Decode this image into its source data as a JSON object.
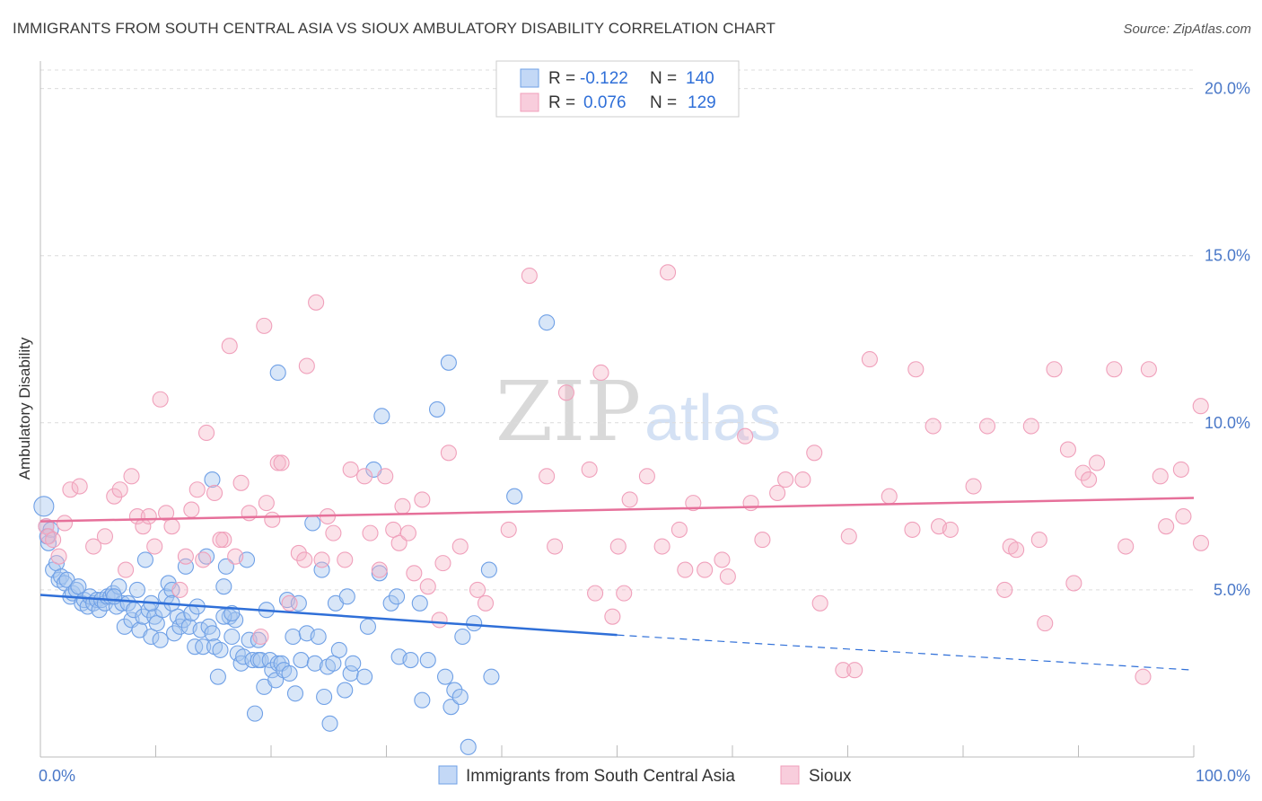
{
  "title": "IMMIGRANTS FROM SOUTH CENTRAL ASIA VS SIOUX AMBULATORY DISABILITY CORRELATION CHART",
  "source": "Source: ZipAtlas.com",
  "watermark": {
    "zip": "ZIP",
    "atlas": "atlas"
  },
  "legend": {
    "rows": [
      {
        "r_label": "R =",
        "r_value": "-0.122",
        "n_label": "N =",
        "n_value": "140",
        "color": "#a9c7f0"
      },
      {
        "r_label": "R =",
        "r_value": "0.076",
        "n_label": "N =",
        "n_value": "129",
        "color": "#f4b6c9"
      }
    ]
  },
  "bottom_legend": [
    "Immigrants from South Central Asia",
    "Sioux"
  ],
  "chart_data": {
    "type": "scatter",
    "title": "IMMIGRANTS FROM SOUTH CENTRAL ASIA VS SIOUX AMBULATORY DISABILITY CORRELATION CHART",
    "xlabel": "",
    "ylabel": "Ambulatory Disability",
    "xlim": [
      0,
      100
    ],
    "ylim": [
      0,
      20.5
    ],
    "x_tick_labels": [
      "0.0%",
      "100.0%"
    ],
    "y_ticks": [
      5,
      10,
      15,
      20
    ],
    "y_tick_labels": [
      "5.0%",
      "10.0%",
      "15.0%",
      "20.0%"
    ],
    "grid": true,
    "legend_position": "top-center",
    "series": [
      {
        "name": "Immigrants from South Central Asia",
        "color": "#6fa0e6",
        "line_color": "#2f6fd8",
        "trend": {
          "x0": 0,
          "y0": 4.85,
          "x1": 50,
          "y1": 3.65,
          "x_end": 100,
          "y_end": 2.6
        },
        "points": [
          [
            0.3,
            7.5
          ],
          [
            0.5,
            6.9
          ],
          [
            0.7,
            6.4
          ],
          [
            0.9,
            6.8
          ],
          [
            1.1,
            5.6
          ],
          [
            1.4,
            5.8
          ],
          [
            1.6,
            5.3
          ],
          [
            1.8,
            5.4
          ],
          [
            2.1,
            5.2
          ],
          [
            2.3,
            5.3
          ],
          [
            2.6,
            4.8
          ],
          [
            2.8,
            4.9
          ],
          [
            3.1,
            5.0
          ],
          [
            3.3,
            5.1
          ],
          [
            3.6,
            4.6
          ],
          [
            3.8,
            4.7
          ],
          [
            4.1,
            4.5
          ],
          [
            4.3,
            4.8
          ],
          [
            4.6,
            4.6
          ],
          [
            4.9,
            4.7
          ],
          [
            5.1,
            4.4
          ],
          [
            5.3,
            4.7
          ],
          [
            5.6,
            4.6
          ],
          [
            5.8,
            4.8
          ],
          [
            6.1,
            4.8
          ],
          [
            6.3,
            4.9
          ],
          [
            6.6,
            4.5
          ],
          [
            6.8,
            5.1
          ],
          [
            7.1,
            4.6
          ],
          [
            7.3,
            3.9
          ],
          [
            7.6,
            4.6
          ],
          [
            7.9,
            4.1
          ],
          [
            8.1,
            4.4
          ],
          [
            8.4,
            5.0
          ],
          [
            8.6,
            3.8
          ],
          [
            8.9,
            4.2
          ],
          [
            9.1,
            5.9
          ],
          [
            9.4,
            4.4
          ],
          [
            9.6,
            3.6
          ],
          [
            9.9,
            4.2
          ],
          [
            10.1,
            4.0
          ],
          [
            10.4,
            3.5
          ],
          [
            10.6,
            4.4
          ],
          [
            10.9,
            4.8
          ],
          [
            11.1,
            5.2
          ],
          [
            11.4,
            5.0
          ],
          [
            11.6,
            3.7
          ],
          [
            11.9,
            4.2
          ],
          [
            12.1,
            3.9
          ],
          [
            12.4,
            4.1
          ],
          [
            12.6,
            5.7
          ],
          [
            12.9,
            3.9
          ],
          [
            13.1,
            4.3
          ],
          [
            13.4,
            3.3
          ],
          [
            13.6,
            4.5
          ],
          [
            13.9,
            3.8
          ],
          [
            14.1,
            3.3
          ],
          [
            14.4,
            6.0
          ],
          [
            14.6,
            3.9
          ],
          [
            14.9,
            3.7
          ],
          [
            15.1,
            3.3
          ],
          [
            15.4,
            2.4
          ],
          [
            15.6,
            3.2
          ],
          [
            15.9,
            5.1
          ],
          [
            16.1,
            5.7
          ],
          [
            16.4,
            4.2
          ],
          [
            16.6,
            3.6
          ],
          [
            16.9,
            4.1
          ],
          [
            17.1,
            3.1
          ],
          [
            17.4,
            2.8
          ],
          [
            17.6,
            3.0
          ],
          [
            17.9,
            5.9
          ],
          [
            18.1,
            3.5
          ],
          [
            18.4,
            2.9
          ],
          [
            18.6,
            1.3
          ],
          [
            18.9,
            2.9
          ],
          [
            19.1,
            2.9
          ],
          [
            19.4,
            2.1
          ],
          [
            19.6,
            4.4
          ],
          [
            19.9,
            2.9
          ],
          [
            20.1,
            2.6
          ],
          [
            20.4,
            2.3
          ],
          [
            20.6,
            2.8
          ],
          [
            20.9,
            2.8
          ],
          [
            21.1,
            2.6
          ],
          [
            21.4,
            4.7
          ],
          [
            21.6,
            2.5
          ],
          [
            21.9,
            3.6
          ],
          [
            22.1,
            1.9
          ],
          [
            22.4,
            4.6
          ],
          [
            22.6,
            2.9
          ],
          [
            23.1,
            3.7
          ],
          [
            23.6,
            7.0
          ],
          [
            23.8,
            2.8
          ],
          [
            24.1,
            3.6
          ],
          [
            24.4,
            5.6
          ],
          [
            24.6,
            1.8
          ],
          [
            24.9,
            2.7
          ],
          [
            25.1,
            1.0
          ],
          [
            25.4,
            2.8
          ],
          [
            25.6,
            4.6
          ],
          [
            25.9,
            3.2
          ],
          [
            26.4,
            2.0
          ],
          [
            26.6,
            4.8
          ],
          [
            26.9,
            2.5
          ],
          [
            27.1,
            2.8
          ],
          [
            28.1,
            2.4
          ],
          [
            28.4,
            3.9
          ],
          [
            28.9,
            8.6
          ],
          [
            29.4,
            5.5
          ],
          [
            29.6,
            10.2
          ],
          [
            30.4,
            4.6
          ],
          [
            30.9,
            4.8
          ],
          [
            31.1,
            3.0
          ],
          [
            32.1,
            2.9
          ],
          [
            32.9,
            4.6
          ],
          [
            33.1,
            1.7
          ],
          [
            33.6,
            2.9
          ],
          [
            35.1,
            2.4
          ],
          [
            35.6,
            1.5
          ],
          [
            35.9,
            2.0
          ],
          [
            36.4,
            1.8
          ],
          [
            36.6,
            3.6
          ],
          [
            37.1,
            0.3
          ],
          [
            37.6,
            4.0
          ],
          [
            38.9,
            5.6
          ],
          [
            39.1,
            2.4
          ],
          [
            41.1,
            7.8
          ],
          [
            43.9,
            13.0
          ],
          [
            35.4,
            11.8
          ],
          [
            34.4,
            10.4
          ],
          [
            20.6,
            11.5
          ],
          [
            14.9,
            8.3
          ],
          [
            15.9,
            4.2
          ],
          [
            16.6,
            4.3
          ],
          [
            6.4,
            4.8
          ],
          [
            9.6,
            4.6
          ],
          [
            11.4,
            4.6
          ],
          [
            18.9,
            3.5
          ],
          [
            0.6,
            6.6
          ]
        ]
      },
      {
        "name": "Sioux",
        "color": "#f0a0bb",
        "line_color": "#e6709a",
        "trend": {
          "x0": 0,
          "y0": 7.05,
          "x1": 100,
          "y1": 7.75
        },
        "points": [
          [
            0.5,
            6.9
          ],
          [
            0.7,
            6.6
          ],
          [
            1.1,
            6.5
          ],
          [
            1.6,
            6.0
          ],
          [
            2.1,
            7.0
          ],
          [
            2.6,
            8.0
          ],
          [
            3.4,
            8.1
          ],
          [
            4.6,
            6.3
          ],
          [
            5.6,
            6.6
          ],
          [
            6.4,
            7.8
          ],
          [
            6.9,
            8.0
          ],
          [
            7.4,
            5.6
          ],
          [
            7.9,
            8.4
          ],
          [
            8.4,
            7.2
          ],
          [
            8.9,
            6.9
          ],
          [
            9.4,
            7.2
          ],
          [
            9.9,
            6.3
          ],
          [
            10.4,
            10.7
          ],
          [
            10.9,
            7.3
          ],
          [
            11.4,
            6.9
          ],
          [
            12.1,
            5.0
          ],
          [
            12.6,
            6.0
          ],
          [
            13.1,
            7.4
          ],
          [
            13.6,
            8.0
          ],
          [
            14.1,
            5.9
          ],
          [
            14.4,
            9.7
          ],
          [
            15.1,
            7.9
          ],
          [
            15.9,
            6.5
          ],
          [
            16.4,
            12.3
          ],
          [
            16.9,
            6.0
          ],
          [
            17.4,
            8.2
          ],
          [
            18.1,
            7.3
          ],
          [
            19.1,
            3.6
          ],
          [
            19.4,
            12.9
          ],
          [
            19.6,
            7.6
          ],
          [
            20.1,
            7.1
          ],
          [
            20.6,
            8.8
          ],
          [
            20.9,
            8.8
          ],
          [
            21.6,
            4.6
          ],
          [
            22.4,
            6.1
          ],
          [
            22.9,
            5.9
          ],
          [
            23.1,
            11.7
          ],
          [
            23.9,
            13.6
          ],
          [
            24.4,
            5.9
          ],
          [
            24.9,
            7.2
          ],
          [
            25.4,
            6.7
          ],
          [
            26.4,
            5.9
          ],
          [
            26.9,
            8.6
          ],
          [
            28.1,
            8.4
          ],
          [
            28.6,
            6.7
          ],
          [
            29.4,
            5.6
          ],
          [
            29.9,
            8.4
          ],
          [
            30.6,
            6.8
          ],
          [
            31.1,
            6.4
          ],
          [
            31.4,
            7.5
          ],
          [
            31.9,
            6.7
          ],
          [
            32.4,
            5.5
          ],
          [
            33.1,
            7.7
          ],
          [
            33.6,
            5.1
          ],
          [
            34.6,
            4.1
          ],
          [
            34.9,
            5.8
          ],
          [
            35.4,
            9.1
          ],
          [
            36.4,
            6.3
          ],
          [
            37.9,
            5.0
          ],
          [
            38.6,
            4.6
          ],
          [
            40.6,
            6.8
          ],
          [
            42.4,
            14.4
          ],
          [
            43.9,
            8.4
          ],
          [
            44.6,
            6.3
          ],
          [
            45.6,
            10.9
          ],
          [
            47.6,
            8.6
          ],
          [
            48.1,
            4.9
          ],
          [
            48.6,
            11.5
          ],
          [
            49.6,
            4.2
          ],
          [
            50.1,
            6.3
          ],
          [
            50.6,
            4.9
          ],
          [
            51.1,
            7.7
          ],
          [
            52.6,
            8.4
          ],
          [
            53.9,
            6.3
          ],
          [
            54.4,
            14.5
          ],
          [
            55.4,
            6.8
          ],
          [
            55.9,
            5.6
          ],
          [
            56.6,
            7.6
          ],
          [
            57.6,
            5.6
          ],
          [
            59.1,
            5.9
          ],
          [
            59.6,
            5.4
          ],
          [
            61.1,
            9.6
          ],
          [
            61.6,
            7.6
          ],
          [
            62.6,
            6.5
          ],
          [
            63.9,
            7.9
          ],
          [
            64.6,
            8.3
          ],
          [
            66.1,
            8.3
          ],
          [
            67.1,
            9.1
          ],
          [
            67.6,
            4.6
          ],
          [
            69.6,
            2.6
          ],
          [
            70.1,
            6.6
          ],
          [
            70.6,
            2.6
          ],
          [
            71.9,
            11.9
          ],
          [
            73.6,
            7.8
          ],
          [
            75.6,
            6.8
          ],
          [
            75.9,
            11.6
          ],
          [
            77.4,
            9.9
          ],
          [
            77.9,
            6.9
          ],
          [
            78.9,
            6.8
          ],
          [
            80.9,
            8.1
          ],
          [
            82.1,
            9.9
          ],
          [
            83.6,
            5.0
          ],
          [
            84.1,
            6.3
          ],
          [
            84.6,
            6.2
          ],
          [
            85.9,
            9.9
          ],
          [
            86.6,
            6.5
          ],
          [
            87.1,
            4.0
          ],
          [
            87.9,
            11.6
          ],
          [
            89.1,
            9.2
          ],
          [
            89.6,
            5.2
          ],
          [
            90.4,
            8.5
          ],
          [
            90.9,
            8.3
          ],
          [
            91.6,
            8.8
          ],
          [
            93.1,
            11.6
          ],
          [
            94.1,
            6.3
          ],
          [
            95.6,
            2.4
          ],
          [
            96.1,
            11.6
          ],
          [
            97.1,
            8.4
          ],
          [
            97.6,
            6.9
          ],
          [
            98.9,
            8.6
          ],
          [
            99.1,
            7.2
          ],
          [
            100.6,
            10.5
          ],
          [
            101.6,
            6.4
          ],
          [
            15.6,
            6.5
          ]
        ]
      }
    ]
  }
}
